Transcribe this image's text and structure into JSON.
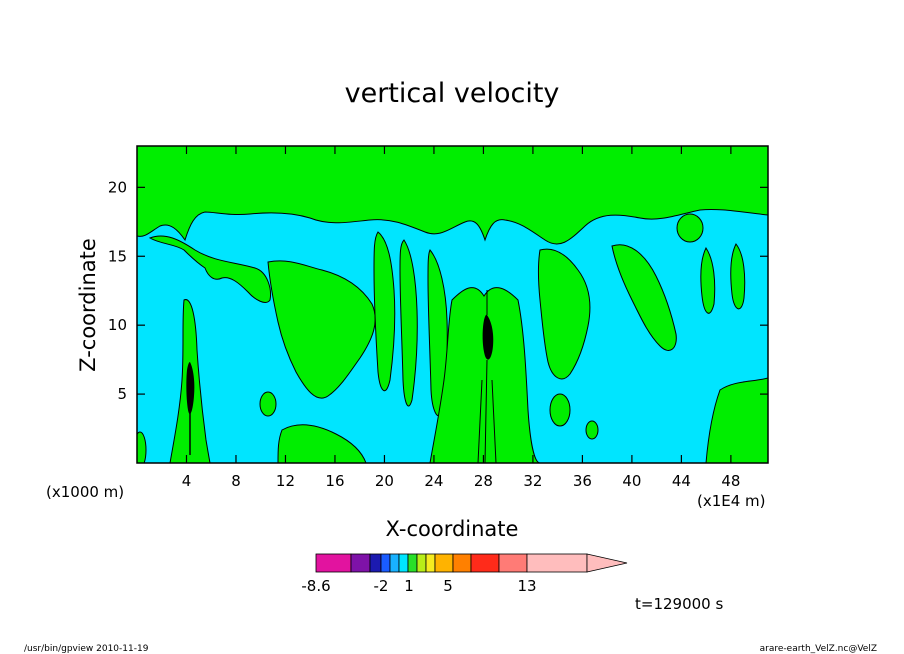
{
  "chart_data": {
    "type": "heatmap",
    "title": "vertical velocity",
    "xlabel": "X-coordinate",
    "ylabel": "Z-coordinate",
    "x_unit_left": "(x1000 m)",
    "x_unit_right": "(x1E4 m)",
    "xlim": [
      0,
      51
    ],
    "ylim": [
      0,
      23
    ],
    "x_ticks": [
      "4",
      "8",
      "12",
      "16",
      "20",
      "24",
      "28",
      "32",
      "36",
      "40",
      "44",
      "48"
    ],
    "x_tick_values": [
      4,
      8,
      12,
      16,
      20,
      24,
      28,
      32,
      36,
      40,
      44,
      48
    ],
    "y_ticks": [
      "5",
      "10",
      "15",
      "20"
    ],
    "y_tick_values": [
      5,
      10,
      15,
      20
    ],
    "time_label": "t=129000 s",
    "colorbar": {
      "labels": [
        "-8.6",
        "-2",
        "1",
        "5",
        "13"
      ],
      "colors": [
        "#e2139f",
        "#7e12a8",
        "#1c1ab0",
        "#1a5cff",
        "#19b1ff",
        "#00e5ff",
        "#28e028",
        "#b8ee18",
        "#f6ec20",
        "#ffb300",
        "#ff8000",
        "#ff2b1a",
        "#ff7b76",
        "#ffbdbd"
      ]
    },
    "background_color": "#00e5ff",
    "positive_color": "#00ee00",
    "core_color": "#000000"
  },
  "footer": {
    "left": "/usr/bin/gpview   2010-11-19",
    "right": "arare-earth_VelZ.nc@VelZ"
  }
}
